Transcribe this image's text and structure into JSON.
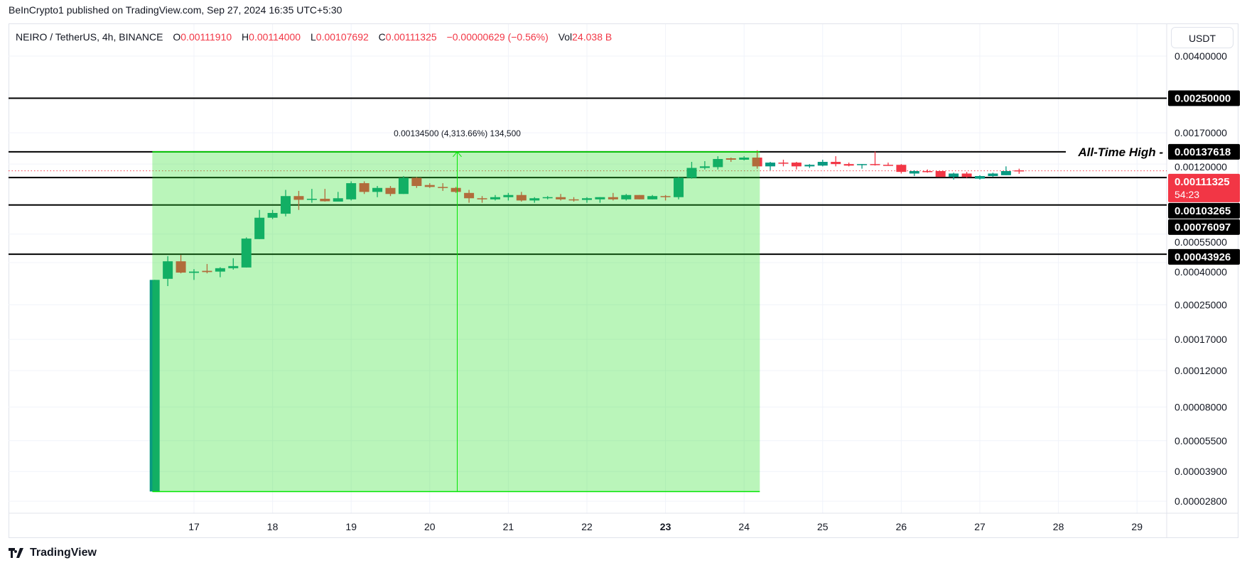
{
  "header": {
    "published": "BeInCrypto1 published on TradingView.com, Sep 27, 2024 16:35 UTC+5:30"
  },
  "legend": {
    "symbol": "NEIRO / TetherUS, 4h, BINANCE",
    "o_label": "O",
    "o": "0.00111910",
    "h_label": "H",
    "h": "0.00114000",
    "l_label": "L",
    "l": "0.00107692",
    "c_label": "C",
    "c": "0.00111325",
    "change": "−0.00000629 (−0.56%)",
    "vol_label": "Vol",
    "vol": "24.038 B"
  },
  "currency_button": "USDT",
  "footer": {
    "brand": "TradingView"
  },
  "colors": {
    "bull": "#089981",
    "bear": "#f23645",
    "measure_fill": "rgba(39,224,39,0.32)",
    "measure_line": "#00e600"
  },
  "chart_data": {
    "type": "candlestick",
    "scale": "log",
    "ylim": [
      2.8e-05,
      0.004
    ],
    "xlim_days": [
      16,
      29.5
    ],
    "x_ticks": [
      "17",
      "18",
      "19",
      "20",
      "21",
      "22",
      "23",
      "24",
      "25",
      "26",
      "27",
      "28",
      "29"
    ],
    "x_tick_bold": "23",
    "y_ticks": [
      "0.00400000",
      "0.00170000",
      "0.00120000",
      "0.00055000",
      "0.00040000",
      "0.00025000",
      "0.00017000",
      "0.00012000",
      "0.00008000",
      "0.00005500",
      "0.00003900",
      "0.00002800"
    ],
    "start_day": 16.5,
    "interval_hours": 4,
    "candles": [
      [
        3.12e-05,
        0.00033,
        3.12e-05,
        0.00033
      ],
      [
        0.000334,
        0.00043,
        0.000308,
        0.000406
      ],
      [
        0.000406,
        0.000436,
        0.000355,
        0.000358
      ],
      [
        0.000357,
        0.000372,
        0.00033,
        0.000362
      ],
      [
        0.000365,
        0.000394,
        0.000355,
        0.00036
      ],
      [
        0.000362,
        0.00038,
        0.00034,
        0.000376
      ],
      [
        0.000376,
        0.00042,
        0.00037,
        0.000385
      ],
      [
        0.000379,
        0.00053,
        0.000379,
        0.000523
      ],
      [
        0.00052,
        0.00072,
        0.00052,
        0.00066
      ],
      [
        0.00066,
        0.00072,
        0.00065,
        0.000696
      ],
      [
        0.00069,
        0.0009,
        0.00067,
        0.00084
      ],
      [
        0.00084,
        0.00089,
        0.00072,
        0.000806
      ],
      [
        0.000812,
        0.00091,
        0.00078,
        0.000815
      ],
      [
        0.000815,
        0.00091,
        0.00079,
        0.000793
      ],
      [
        0.00079,
        0.00088,
        0.00079,
        0.00082
      ],
      [
        0.00081,
        0.00099,
        0.0008,
        0.00097
      ],
      [
        0.00097,
        0.00099,
        0.00086,
        0.00088
      ],
      [
        0.00088,
        0.00094,
        0.00083,
        0.00092
      ],
      [
        0.00092,
        0.00094,
        0.00084,
        0.00086
      ],
      [
        0.00086,
        0.00105,
        0.00086,
        0.00103
      ],
      [
        0.00103,
        0.00104,
        0.00092,
        0.00094
      ],
      [
        0.00095,
        0.00097,
        0.00092,
        0.00093
      ],
      [
        0.00093,
        0.00097,
        0.00089,
        0.00092
      ],
      [
        0.00092,
        0.00093,
        0.00087,
        0.00088
      ],
      [
        0.00087,
        0.0009,
        0.00078,
        0.00082
      ],
      [
        0.00082,
        0.00084,
        0.00078,
        0.00081
      ],
      [
        0.00081,
        0.00085,
        0.0008,
        0.00083
      ],
      [
        0.00083,
        0.00087,
        0.0008,
        0.00085
      ],
      [
        0.00085,
        0.00088,
        0.00079,
        0.0008
      ],
      [
        0.0008,
        0.00083,
        0.00078,
        0.00082
      ],
      [
        0.00082,
        0.00084,
        0.00081,
        0.00083
      ],
      [
        0.00083,
        0.00086,
        0.0008,
        0.00081
      ],
      [
        0.00081,
        0.00083,
        0.00079,
        0.000805
      ],
      [
        0.000805,
        0.00083,
        0.00078,
        0.00082
      ],
      [
        0.00081,
        0.00083,
        0.00078,
        0.00083
      ],
      [
        0.00083,
        0.00087,
        0.0008,
        0.00081
      ],
      [
        0.00081,
        0.00086,
        0.0008,
        0.00085
      ],
      [
        0.00085,
        0.00085,
        0.00081,
        0.00081
      ],
      [
        0.00081,
        0.00085,
        0.00081,
        0.00084
      ],
      [
        0.00084,
        0.00085,
        0.0008,
        0.00083
      ],
      [
        0.00083,
        0.00104,
        0.00081,
        0.00103
      ],
      [
        0.00103,
        0.00123,
        0.00102,
        0.00115
      ],
      [
        0.00115,
        0.00124,
        0.00113,
        0.00117
      ],
      [
        0.00116,
        0.00131,
        0.00113,
        0.00127
      ],
      [
        0.00128,
        0.00129,
        0.00123,
        0.00126
      ],
      [
        0.00126,
        0.00131,
        0.00125,
        0.00129
      ],
      [
        0.00129,
        0.0014,
        0.00114,
        0.00117
      ],
      [
        0.00117,
        0.00123,
        0.00112,
        0.00122
      ],
      [
        0.00122,
        0.00126,
        0.00117,
        0.00121
      ],
      [
        0.00122,
        0.00123,
        0.00113,
        0.00117
      ],
      [
        0.00117,
        0.0012,
        0.00115,
        0.00119
      ],
      [
        0.00118,
        0.00126,
        0.00117,
        0.00123
      ],
      [
        0.00123,
        0.00131,
        0.00117,
        0.0012
      ],
      [
        0.0012,
        0.00122,
        0.00117,
        0.00118
      ],
      [
        0.00119,
        0.0012,
        0.00114,
        0.0012
      ],
      [
        0.0012,
        0.00138,
        0.00118,
        0.00119
      ],
      [
        0.00119,
        0.00122,
        0.00118,
        0.00118
      ],
      [
        0.00119,
        0.0012,
        0.00108,
        0.0011
      ],
      [
        0.00108,
        0.00112,
        0.00105,
        0.00111
      ],
      [
        0.00111,
        0.00113,
        0.00109,
        0.0011
      ],
      [
        0.00111,
        0.00111,
        0.00104,
        0.00104
      ],
      [
        0.00104,
        0.00109,
        0.00101,
        0.00108
      ],
      [
        0.00108,
        0.0011,
        0.00103,
        0.00104
      ],
      [
        0.00102,
        0.00106,
        0.00101,
        0.00105
      ],
      [
        0.00105,
        0.00109,
        0.00104,
        0.00108
      ],
      [
        0.00106,
        0.00117,
        0.00106,
        0.00111
      ],
      [
        0.0011191,
        0.00114,
        0.00107692,
        0.00111325
      ]
    ],
    "horizontal_levels": [
      {
        "price": 0.0025,
        "label": "0.00250000"
      },
      {
        "price": 0.00137618,
        "label": "0.00137618",
        "annotation": "All-Time High -"
      },
      {
        "price": 0.00103265,
        "label": "0.00103265"
      },
      {
        "price": 0.00076097,
        "label": "0.00076097"
      },
      {
        "price": 0.00043926,
        "label": "0.00043926"
      }
    ],
    "current_price": {
      "price": 0.00111325,
      "label": "0.00111325",
      "countdown": "54:23"
    },
    "measure": {
      "from_day": 16.47,
      "to_day": 24.2,
      "low": 3.118e-05,
      "high": 0.00137618,
      "arrow_day": 20.35,
      "label": "0.00134500 (4,313.66%) 134,500"
    }
  }
}
